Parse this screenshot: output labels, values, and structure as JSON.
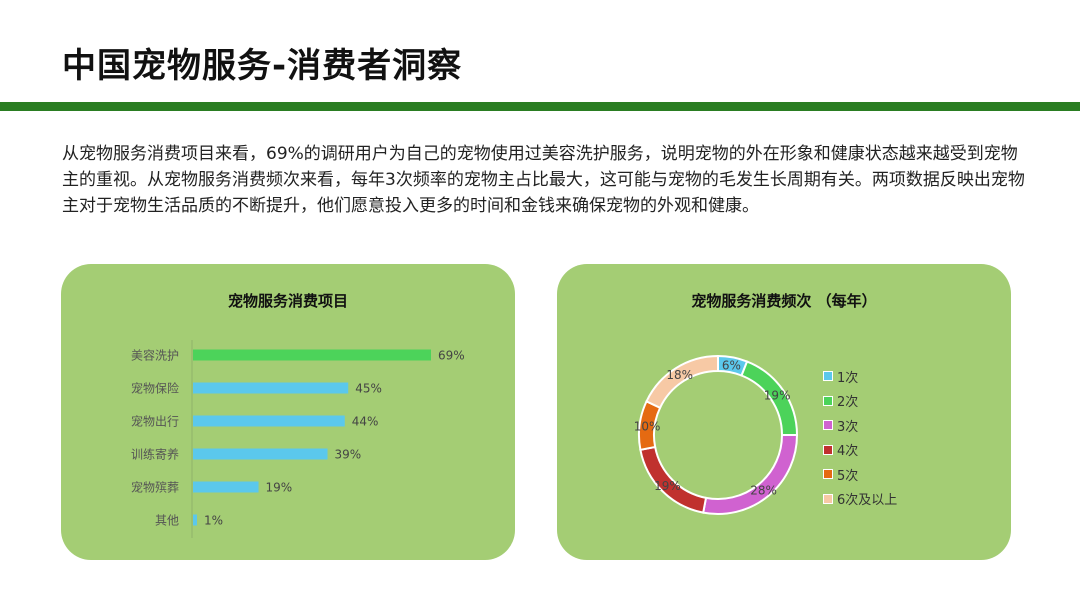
{
  "slide": {
    "title": "中国宠物服务-消费者洞察",
    "description": "从宠物服务消费项目来看，69%的调研用户为自己的宠物使用过美容洗护服务，说明宠物的外在形象和健康状态越来越受到宠物主的重视。从宠物服务消费频次来看，每年3次频率的宠物主占比最大，这可能与宠物的毛发生长周期有关。两项数据反映出宠物主对于宠物生活品质的不断提升，他们愿意投入更多的时间和金钱来确保宠物的外观和健康。"
  },
  "colors": {
    "title_rule": "#2a7d22",
    "card_bg": "#a4cd74"
  },
  "chart_data": [
    {
      "type": "bar",
      "orientation": "horizontal",
      "title": "宠物服务消费项目",
      "categories": [
        "美容洗护",
        "宠物保险",
        "宠物出行",
        "训练寄养",
        "宠物殡葬",
        "其他"
      ],
      "values": [
        69,
        45,
        44,
        39,
        19,
        1
      ],
      "labels": [
        "69%",
        "45%",
        "44%",
        "39%",
        "19%",
        "1%"
      ],
      "unit": "%",
      "xlim": [
        0,
        100
      ],
      "bar_colors": [
        "#4cd35a",
        "#5bc8ec",
        "#5bc8ec",
        "#5bc8ec",
        "#5bc8ec",
        "#5bc8ec"
      ],
      "grid": false
    },
    {
      "type": "pie",
      "variant": "donut",
      "title": "宠物服务消费频次 （每年）",
      "categories": [
        "1次",
        "2次",
        "3次",
        "4次",
        "5次",
        "6次及以上"
      ],
      "values": [
        6,
        19,
        28,
        19,
        10,
        18
      ],
      "labels": [
        "6%",
        "19%",
        "28%",
        "19%",
        "10%",
        "18%"
      ],
      "colors": [
        "#5bc8ec",
        "#4cd35a",
        "#d062d0",
        "#c0312e",
        "#e56a12",
        "#f7c9a5"
      ],
      "legend": "right"
    }
  ]
}
